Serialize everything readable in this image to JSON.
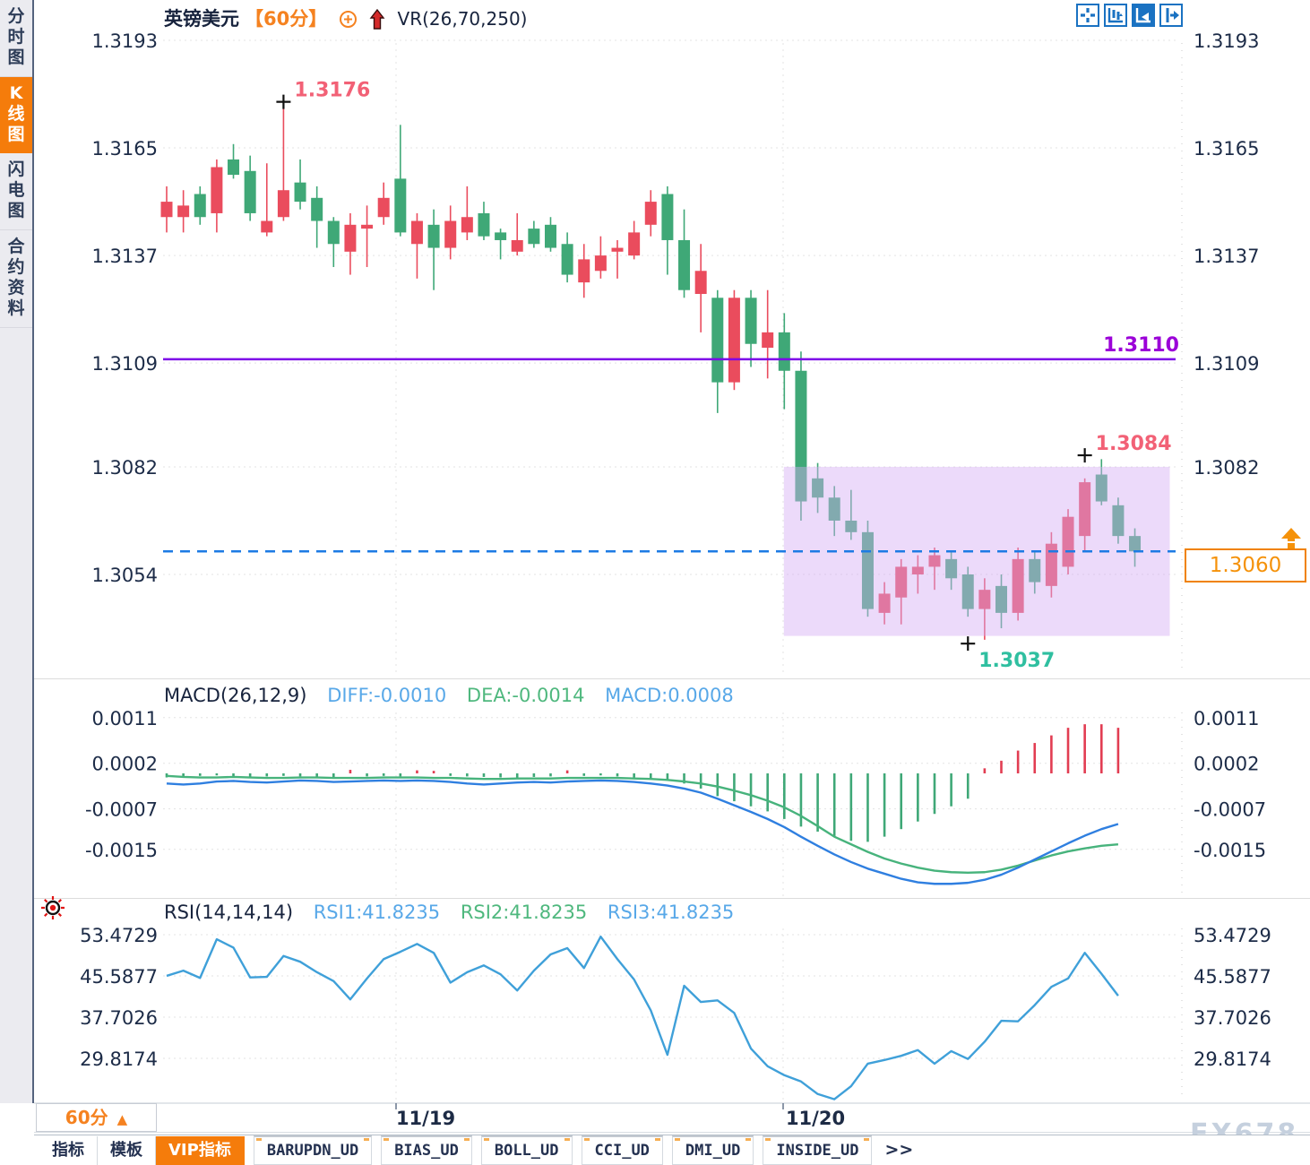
{
  "header": {
    "symbol": "英镑美元",
    "period": "【60分】",
    "indicator": "VR(26,70,250)"
  },
  "sidebar": {
    "items": [
      {
        "label": "分时图",
        "active": false
      },
      {
        "label": "K线图",
        "active": true
      },
      {
        "label": "闪电图",
        "active": false
      },
      {
        "label": "合约资料",
        "active": false
      }
    ]
  },
  "toolbar_icons": [
    {
      "name": "crosshair-icon",
      "active": false
    },
    {
      "name": "axis-candles-icon",
      "active": false
    },
    {
      "name": "axis-pointer-icon",
      "active": true
    },
    {
      "name": "pan-right-icon",
      "active": false
    }
  ],
  "price_panel": {
    "axis_labels": [
      "1.3193",
      "1.3165",
      "1.3137",
      "1.3109",
      "1.3082",
      "1.3054"
    ],
    "resistance_line": {
      "label": "1.3110",
      "price": 1.311,
      "color": "#7d05e8"
    },
    "current_price": "1.3060",
    "current_price_value": 1.306,
    "high_marker": {
      "index": 7,
      "price": 1.3177,
      "label": "1.3176",
      "color": "#f26176"
    },
    "low_marker": {
      "index": 48,
      "price": 1.3036,
      "label": "1.3037",
      "color": "#2fbfa0"
    },
    "swing_marker": {
      "index": 55,
      "price": 1.3085,
      "label": "1.3084",
      "color": "#f26176"
    },
    "highlight_zone": {
      "from_index": 37,
      "price_top": 1.3082,
      "price_bottom": 1.3038
    }
  },
  "macd_panel": {
    "title": "MACD(26,12,9)",
    "diff_label": "DIFF:-0.0010",
    "dea_label": "DEA:-0.0014",
    "macd_label": "MACD:0.0008",
    "axis_labels": [
      "0.0011",
      "0.0002",
      "-0.0007",
      "-0.0015"
    ]
  },
  "rsi_panel": {
    "title": "RSI(14,14,14)",
    "rsi1_label": "RSI1:41.8235",
    "rsi2_label": "RSI2:41.8235",
    "rsi3_label": "RSI3:41.8235",
    "axis_labels": [
      "53.4729",
      "45.5877",
      "37.7026",
      "29.8174"
    ]
  },
  "x_axis": {
    "labels": [
      "11/19",
      "11/20"
    ]
  },
  "period_selector": {
    "label": "60分",
    "arrow": "▲"
  },
  "bottom_tabs": [
    {
      "label": "指标",
      "active": false,
      "ud": false
    },
    {
      "label": "模板",
      "active": false,
      "ud": false
    },
    {
      "label": "VIP指标",
      "active": true,
      "ud": false
    },
    {
      "label": "BARUPDN_UD",
      "active": false,
      "ud": true
    },
    {
      "label": "BIAS_UD",
      "active": false,
      "ud": true
    },
    {
      "label": "BOLL_UD",
      "active": false,
      "ud": true
    },
    {
      "label": "CCI_UD",
      "active": false,
      "ud": true
    },
    {
      "label": "DMI_UD",
      "active": false,
      "ud": true
    },
    {
      "label": "INSIDE_UD",
      "active": false,
      "ud": true
    },
    {
      "label": ">>",
      "active": false,
      "ud": false,
      "more": true
    }
  ],
  "watermark": "FX678",
  "colors": {
    "candle_up": "#ea4c5d",
    "candle_down": "#3fa877",
    "macd_diff": "#2f7fe0",
    "macd_dea": "#47b37c",
    "hist_pos": "#e23d52",
    "hist_neg": "#3fa877",
    "rsi_line": "#3fa0d9",
    "resistance": "#7d05e8",
    "current_dash": "#1d7be4",
    "accent_orange": "#f58220",
    "axis_text": "#1c2b47",
    "highlight_fill": "rgba(213,173,245,0.45)"
  },
  "chart_data": {
    "type": "candlestick",
    "symbol": "英镑美元 (GBP/USD)",
    "interval": "60分",
    "x_tick_labels": [
      "11/19",
      "11/20"
    ],
    "price_axis_range": [
      1.304,
      1.3193
    ],
    "candles_ohlc": [
      [
        1.3147,
        1.3155,
        1.3143,
        1.3151
      ],
      [
        1.3147,
        1.3154,
        1.3143,
        1.315
      ],
      [
        1.3153,
        1.3155,
        1.3145,
        1.3147
      ],
      [
        1.3148,
        1.3162,
        1.3143,
        1.316
      ],
      [
        1.3162,
        1.3166,
        1.3157,
        1.3158
      ],
      [
        1.3159,
        1.3163,
        1.3146,
        1.3148
      ],
      [
        1.3143,
        1.3161,
        1.3142,
        1.3146
      ],
      [
        1.3147,
        1.3176,
        1.3146,
        1.3154
      ],
      [
        1.3156,
        1.3162,
        1.3149,
        1.3151
      ],
      [
        1.3152,
        1.3155,
        1.3139,
        1.3146
      ],
      [
        1.3146,
        1.3147,
        1.3134,
        1.314
      ],
      [
        1.3138,
        1.3148,
        1.3132,
        1.3145
      ],
      [
        1.3144,
        1.315,
        1.3134,
        1.3145
      ],
      [
        1.3147,
        1.3156,
        1.3145,
        1.3152
      ],
      [
        1.3157,
        1.3171,
        1.3142,
        1.3143
      ],
      [
        1.314,
        1.3148,
        1.3131,
        1.3146
      ],
      [
        1.3145,
        1.3149,
        1.3128,
        1.3139
      ],
      [
        1.3139,
        1.315,
        1.3136,
        1.3146
      ],
      [
        1.3143,
        1.3155,
        1.3141,
        1.3147
      ],
      [
        1.3148,
        1.3151,
        1.3141,
        1.3142
      ],
      [
        1.3143,
        1.3144,
        1.3136,
        1.3141
      ],
      [
        1.3138,
        1.3148,
        1.3137,
        1.3141
      ],
      [
        1.3144,
        1.3146,
        1.3139,
        1.314
      ],
      [
        1.3145,
        1.3147,
        1.3138,
        1.3139
      ],
      [
        1.314,
        1.3143,
        1.313,
        1.3132
      ],
      [
        1.313,
        1.314,
        1.3126,
        1.3136
      ],
      [
        1.3133,
        1.3142,
        1.3131,
        1.3137
      ],
      [
        1.3138,
        1.3141,
        1.3131,
        1.3139
      ],
      [
        1.3137,
        1.3146,
        1.3136,
        1.3143
      ],
      [
        1.3145,
        1.3154,
        1.3142,
        1.3151
      ],
      [
        1.3153,
        1.3155,
        1.3132,
        1.3141
      ],
      [
        1.3141,
        1.3149,
        1.3126,
        1.3128
      ],
      [
        1.3127,
        1.314,
        1.3117,
        1.3133
      ],
      [
        1.3126,
        1.3128,
        1.3096,
        1.3104
      ],
      [
        1.3104,
        1.3128,
        1.3102,
        1.3126
      ],
      [
        1.3126,
        1.3128,
        1.3108,
        1.3114
      ],
      [
        1.3113,
        1.3128,
        1.3105,
        1.3117
      ],
      [
        1.3117,
        1.3122,
        1.3097,
        1.3107
      ],
      [
        1.3107,
        1.3112,
        1.3068,
        1.3073
      ],
      [
        1.3079,
        1.3083,
        1.307,
        1.3074
      ],
      [
        1.3074,
        1.3077,
        1.3064,
        1.3068
      ],
      [
        1.3068,
        1.3076,
        1.3063,
        1.3065
      ],
      [
        1.3065,
        1.3068,
        1.3043,
        1.3045
      ],
      [
        1.3044,
        1.3052,
        1.3041,
        1.3049
      ],
      [
        1.3048,
        1.3058,
        1.3041,
        1.3056
      ],
      [
        1.3054,
        1.3059,
        1.3049,
        1.3056
      ],
      [
        1.3056,
        1.3061,
        1.305,
        1.3059
      ],
      [
        1.3058,
        1.306,
        1.305,
        1.3053
      ],
      [
        1.3054,
        1.3056,
        1.3043,
        1.3045
      ],
      [
        1.3045,
        1.3053,
        1.3037,
        1.305
      ],
      [
        1.3051,
        1.3054,
        1.304,
        1.3044
      ],
      [
        1.3044,
        1.3061,
        1.3042,
        1.3058
      ],
      [
        1.3058,
        1.306,
        1.3049,
        1.3052
      ],
      [
        1.3051,
        1.3065,
        1.3048,
        1.3062
      ],
      [
        1.3056,
        1.3071,
        1.3054,
        1.3069
      ],
      [
        1.3064,
        1.3079,
        1.306,
        1.3078
      ],
      [
        1.308,
        1.3084,
        1.3072,
        1.3073
      ],
      [
        1.3072,
        1.3074,
        1.3062,
        1.3064
      ],
      [
        1.3064,
        1.3066,
        1.3056,
        1.306
      ]
    ],
    "macd": {
      "params": "26,12,9",
      "diff_current": -0.001,
      "dea_current": -0.0014,
      "macd_current": 0.0008,
      "hist_x1e4": [
        -0.8,
        -0.6,
        -0.5,
        -0.4,
        -0.6,
        -0.8,
        -0.6,
        -0.5,
        -0.6,
        -0.7,
        -0.8,
        0.7,
        -0.6,
        -0.5,
        -0.6,
        0.6,
        0.5,
        -0.5,
        -0.6,
        -0.7,
        -0.8,
        -0.8,
        -0.7,
        -0.6,
        0.6,
        -0.5,
        -0.4,
        -0.6,
        -0.8,
        -1.0,
        -1.4,
        -2.0,
        -3.0,
        -4.5,
        -5.5,
        -6.5,
        -7.5,
        -9.0,
        -10.5,
        -11.5,
        -12.5,
        -13.3,
        -13.5,
        -12.5,
        -11.0,
        -9.5,
        -8.0,
        -6.5,
        -5.0,
        1.0,
        2.5,
        4.5,
        6.0,
        7.5,
        9.0,
        9.7,
        9.7,
        9.0
      ],
      "diff_x1e4": [
        -2.0,
        -2.2,
        -2.0,
        -1.6,
        -1.5,
        -1.7,
        -1.8,
        -1.6,
        -1.4,
        -1.5,
        -1.7,
        -1.6,
        -1.5,
        -1.4,
        -1.5,
        -1.4,
        -1.5,
        -1.7,
        -2.0,
        -2.2,
        -2.0,
        -1.8,
        -1.7,
        -1.8,
        -1.6,
        -1.5,
        -1.4,
        -1.5,
        -1.7,
        -2.0,
        -2.4,
        -3.0,
        -3.8,
        -5.0,
        -6.3,
        -7.6,
        -9.0,
        -10.6,
        -12.5,
        -14.3,
        -16.0,
        -17.5,
        -18.8,
        -19.8,
        -20.8,
        -21.5,
        -21.8,
        -21.8,
        -21.6,
        -21.0,
        -20.0,
        -18.6,
        -17.0,
        -15.4,
        -13.8,
        -12.3,
        -11.0,
        -10.0
      ],
      "dea_x1e4": [
        -0.5,
        -0.7,
        -0.8,
        -0.8,
        -0.7,
        -0.8,
        -0.9,
        -0.9,
        -0.8,
        -0.8,
        -0.9,
        -0.9,
        -0.9,
        -0.8,
        -0.8,
        -0.8,
        -0.9,
        -0.9,
        -1.0,
        -1.1,
        -1.1,
        -1.0,
        -1.0,
        -1.0,
        -0.9,
        -0.9,
        -0.9,
        -0.9,
        -1.0,
        -1.1,
        -1.3,
        -1.6,
        -2.0,
        -2.6,
        -3.4,
        -4.3,
        -5.4,
        -6.7,
        -8.4,
        -10.4,
        -12.5,
        -14.0,
        -15.5,
        -16.8,
        -17.8,
        -18.6,
        -19.2,
        -19.5,
        -19.6,
        -19.5,
        -19.0,
        -18.2,
        -17.2,
        -16.2,
        -15.4,
        -14.8,
        -14.3,
        -14.0
      ]
    },
    "rsi": {
      "params": "14,14,14",
      "current": 41.8235,
      "values": [
        45.6,
        46.6,
        45.2,
        52.6,
        51.0,
        45.3,
        45.4,
        49.4,
        48.3,
        46.3,
        44.6,
        41.1,
        45.1,
        48.8,
        50.2,
        51.7,
        50.0,
        44.3,
        46.3,
        47.6,
        45.9,
        42.8,
        46.6,
        49.7,
        50.9,
        47.1,
        53.1,
        48.8,
        44.9,
        39.0,
        30.5,
        43.7,
        40.6,
        40.9,
        38.5,
        31.7,
        28.3,
        26.6,
        25.4,
        23.0,
        22.0,
        24.5,
        28.8,
        29.5,
        30.3,
        31.4,
        28.8,
        31.2,
        29.7,
        33.0,
        37.0,
        36.9,
        40.0,
        43.5,
        45.1,
        50.0,
        46.0,
        41.8
      ]
    }
  }
}
